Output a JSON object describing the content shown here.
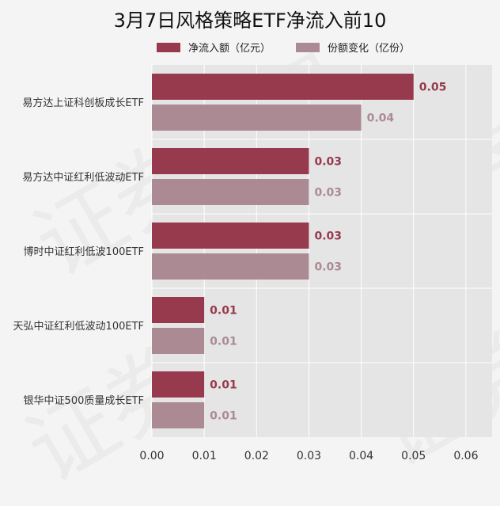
{
  "chart_data": {
    "type": "bar",
    "orientation": "horizontal",
    "title": "3月7日风格策略ETF净流入前10",
    "categories": [
      "易方达上证科创板成长ETF",
      "易方达中证红利低波动ETF",
      "博时中证红利低波100ETF",
      "天弘中证红利低波动100ETF",
      "银华中证500质量成长ETF"
    ],
    "series": [
      {
        "name": "净流入额（亿元）",
        "values": [
          0.05,
          0.03,
          0.03,
          0.01,
          0.01
        ],
        "labels": [
          "0.05",
          "0.03",
          "0.03",
          "0.01",
          "0.01"
        ],
        "color": "#973a4d"
      },
      {
        "name": "份额变化（亿份）",
        "values": [
          0.04,
          0.03,
          0.03,
          0.01,
          0.01
        ],
        "labels": [
          "0.04",
          "0.03",
          "0.03",
          "0.01",
          "0.01"
        ],
        "color": "#ab8a93"
      }
    ],
    "xlim": [
      0,
      0.065
    ],
    "xticks": [
      "0.00",
      "0.01",
      "0.02",
      "0.03",
      "0.04",
      "0.05",
      "0.06"
    ],
    "xtick_values": [
      0,
      0.01,
      0.02,
      0.03,
      0.04,
      0.05,
      0.06
    ],
    "grid": true,
    "legend_position": "top-center",
    "plot_background": "#e5e5e5"
  },
  "watermark": "证券之星"
}
